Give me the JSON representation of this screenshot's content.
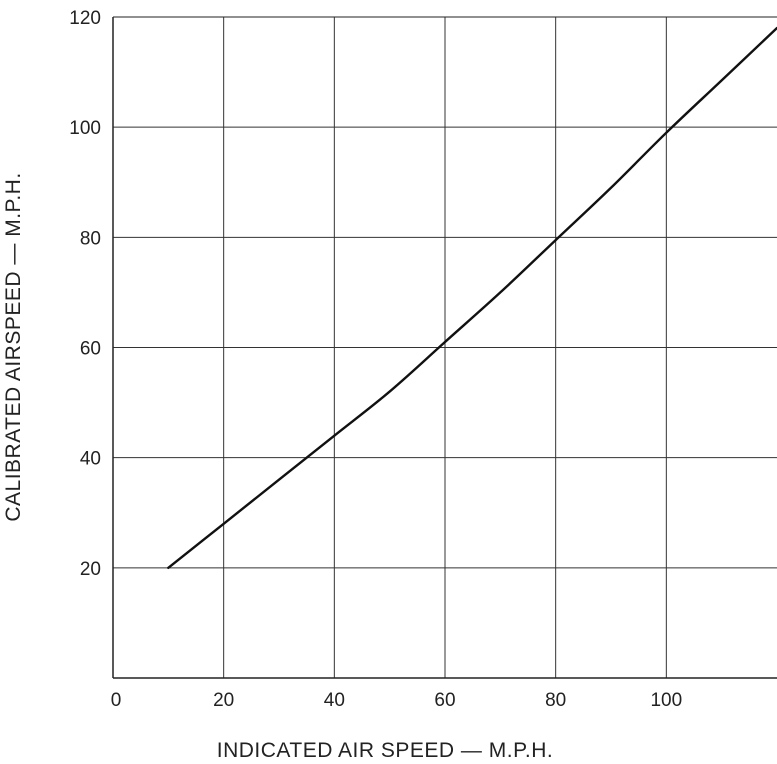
{
  "chart_data": {
    "type": "line",
    "title": "",
    "xlabel": "INDICATED AIR SPEED — M.P.H.",
    "ylabel": "CALIBRATED AIRSPEED — M.P.H.",
    "xlim": [
      0,
      120
    ],
    "ylim": [
      0,
      120
    ],
    "x_ticks": [
      0,
      20,
      40,
      60,
      80,
      100
    ],
    "y_ticks": [
      20,
      40,
      60,
      80,
      100,
      120
    ],
    "grid": true,
    "series": [
      {
        "x": [
          10,
          20,
          30,
          40,
          50,
          60,
          70,
          80,
          90,
          100,
          110,
          120
        ],
        "y": [
          20,
          28,
          36,
          44,
          52,
          61,
          70,
          79.5,
          89,
          99,
          108.5,
          118
        ]
      }
    ]
  },
  "colors": {
    "line": "#111111",
    "grid": "#333333",
    "axes": "#222222"
  }
}
